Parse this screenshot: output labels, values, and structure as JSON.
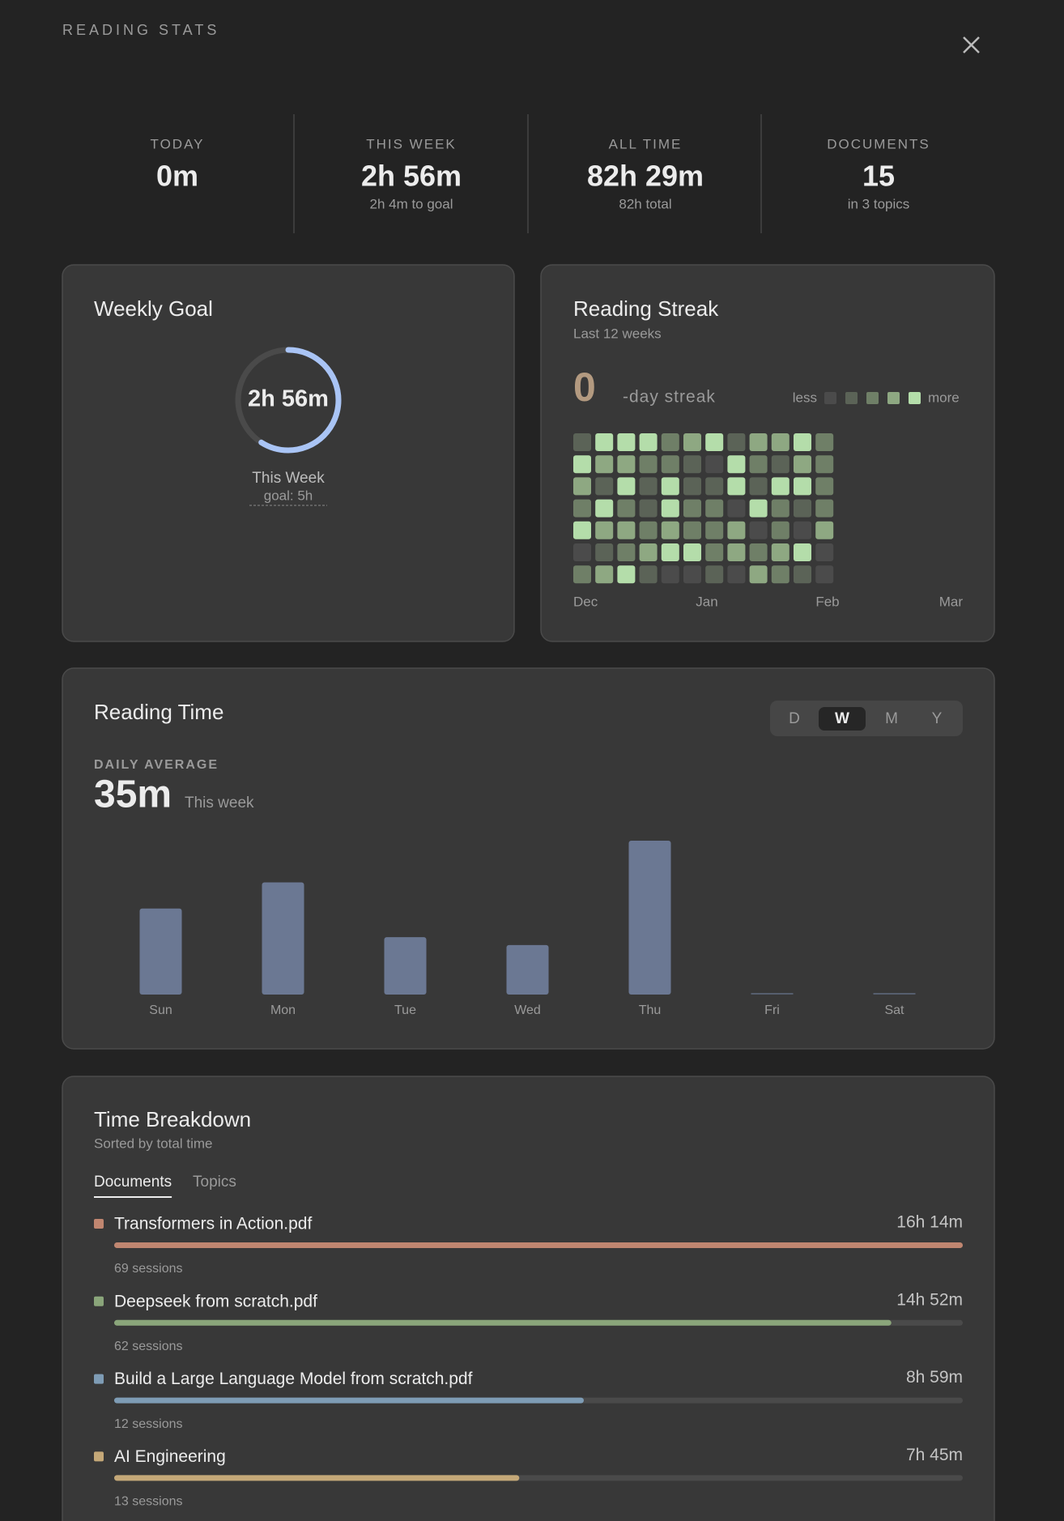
{
  "header": {
    "title": "READING STATS"
  },
  "stats": [
    {
      "label": "TODAY",
      "value": "0m"
    },
    {
      "label": "THIS WEEK",
      "value": "2h 56m",
      "sub": "2h 4m to goal"
    },
    {
      "label": "ALL TIME",
      "value": "82h 29m",
      "sub": "82h total"
    },
    {
      "label": "DOCUMENTS",
      "value": "15",
      "sub": "in 3 topics"
    }
  ],
  "weekly_goal": {
    "title": "Weekly Goal",
    "progress": 0.59,
    "progress_color": "#a9c4f5",
    "center": "2h 56m",
    "label": "This Week",
    "goal": "goal: 5h"
  },
  "streak": {
    "title": "Reading Streak",
    "subtitle": "Last 12 weeks",
    "count": 0,
    "suffix": "-day streak",
    "legend_less": "less",
    "legend_more": "more",
    "level_colors": [
      "#4b4b4b",
      "#5b6357",
      "#6f7f67",
      "#8ea882",
      "#b4ddaa"
    ],
    "levels": [
      [
        1,
        4,
        4,
        4,
        2,
        3,
        4,
        1,
        3,
        3,
        4,
        2
      ],
      [
        4,
        3,
        3,
        2,
        2,
        1,
        0,
        4,
        2,
        1,
        3,
        2
      ],
      [
        3,
        1,
        4,
        1,
        4,
        1,
        1,
        4,
        1,
        4,
        4,
        2
      ],
      [
        2,
        4,
        2,
        1,
        4,
        2,
        2,
        0,
        4,
        2,
        1,
        2
      ],
      [
        4,
        3,
        3,
        2,
        3,
        2,
        2,
        3,
        0,
        2,
        0,
        3
      ],
      [
        0,
        1,
        2,
        3,
        4,
        4,
        2,
        3,
        2,
        3,
        4,
        0
      ],
      [
        2,
        3,
        4,
        1,
        0,
        0,
        1,
        0,
        3,
        2,
        1,
        0
      ]
    ],
    "months": [
      "Dec",
      "Jan",
      "Feb",
      "Mar"
    ]
  },
  "reading_time": {
    "title": "Reading Time",
    "periods": [
      "D",
      "W",
      "M",
      "Y"
    ],
    "selected_period": 1,
    "average_label": "DAILY AVERAGE",
    "average": "35m",
    "average_note": "This week",
    "chart_data": {
      "type": "bar",
      "categories": [
        "Sun",
        "Mon",
        "Tue",
        "Wed",
        "Thu",
        "Fri",
        "Sat"
      ],
      "values": [
        33,
        43,
        22,
        19,
        59,
        0,
        0
      ],
      "color": "#6b7893"
    }
  },
  "breakdown": {
    "title": "Time Breakdown",
    "subtitle": "Sorted by total time",
    "tabs": [
      "Documents",
      "Topics"
    ],
    "selected_tab": 0,
    "items": [
      {
        "name": "Transformers in Action.pdf",
        "time": "16h 14m",
        "minutes": 974,
        "sessions": "69 sessions",
        "color": "#c08670"
      },
      {
        "name": "Deepseek from scratch.pdf",
        "time": "14h 52m",
        "minutes": 892,
        "sessions": "62 sessions",
        "color": "#8aa57a"
      },
      {
        "name": "Build a Large Language Model from scratch.pdf",
        "time": "8h 59m",
        "minutes": 539,
        "sessions": "12 sessions",
        "color": "#7e9cb5"
      },
      {
        "name": "AI Engineering",
        "time": "7h 45m",
        "minutes": 465,
        "sessions": "13 sessions",
        "color": "#c4a878"
      }
    ]
  }
}
